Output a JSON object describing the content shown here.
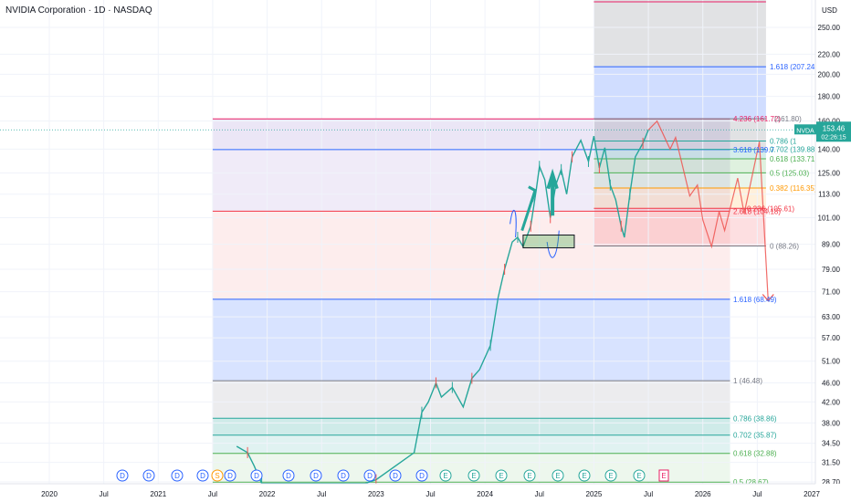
{
  "header": {
    "title": "NVIDIA Corporation · 1D · NASDAQ"
  },
  "chart_data": {
    "type": "line",
    "currency": "USD",
    "symbol": "NVDA",
    "last_price": "153.46",
    "countdown": "02:26:15",
    "x_ticks": [
      "2020",
      "Jul",
      "2021",
      "Jul",
      "2022",
      "Jul",
      "2023",
      "Jul",
      "2024",
      "Jul",
      "2025",
      "Jul",
      "2026",
      "Jul",
      "2027"
    ],
    "y_ticks": [
      "250.00",
      "220.00",
      "200.00",
      "180.00",
      "160.00",
      "140.00",
      "125.00",
      "113.00",
      "101.00",
      "89.00",
      "79.00",
      "71.00",
      "63.00",
      "57.00",
      "51.00",
      "46.00",
      "42.00",
      "38.00",
      "34.50",
      "31.50",
      "28.70"
    ],
    "fib_long": [
      {
        "level": "1",
        "value": "46.48",
        "label": "1 (46.48)",
        "color": "#787b86"
      },
      {
        "level": "0.786",
        "value": "38.86",
        "label": "0.786 (38.86)",
        "color": "#26a69a"
      },
      {
        "level": "0.702",
        "value": "35.87",
        "label": "0.702 (35.87)",
        "color": "#26a69a"
      },
      {
        "level": "0.618",
        "value": "32.88",
        "label": "0.618 (32.88)",
        "color": "#4caf50"
      },
      {
        "level": "0.5",
        "value": "28.67",
        "label": "0.5 (28.67)",
        "color": "#4caf50"
      },
      {
        "level": "1.618",
        "value": "68.49",
        "label": "1.618 (68.49)",
        "color": "#2962ff"
      },
      {
        "level": "2.618",
        "value": "104.18",
        "label": "2.618 (104.18)",
        "color": "#f23645"
      },
      {
        "level": "3.618",
        "value": "139.7",
        "label": "3.618 (139.7",
        "color": "#2962ff"
      },
      {
        "level": "4.236",
        "value": "161.72",
        "label": "4.236 (161.72)",
        "color": "#e91e63"
      }
    ],
    "fib_right": [
      {
        "level": "",
        "value": "161.80",
        "label": "(161.80)",
        "color": "#787b86"
      },
      {
        "level": "0.786",
        "value": "",
        "label": "0.786 (1",
        "color": "#26a69a"
      },
      {
        "level": "0.702",
        "value": "139.88",
        "label": "0.702 (139.88)",
        "color": "#26a69a"
      },
      {
        "level": "0.618",
        "value": "133.71",
        "label": "0.618 (133.71)",
        "color": "#4caf50"
      },
      {
        "level": "0.5",
        "value": "125.03",
        "label": "0.5 (125.03)",
        "color": "#4caf50"
      },
      {
        "level": "0.382",
        "value": "116.35",
        "label": "0.382 (116.35)",
        "color": "#ff9800"
      },
      {
        "level": "0.236",
        "value": "105.61",
        "label": "0.236 (105.61)",
        "color": "#f23645"
      },
      {
        "level": "0",
        "value": "88.26",
        "label": "0 (88.26)",
        "color": "#787b86"
      },
      {
        "level": "1.618",
        "value": "207.24",
        "label": "1.618 (207.24)",
        "color": "#2962ff"
      }
    ],
    "events": [
      "D",
      "D",
      "D",
      "D",
      "S",
      "D",
      "D",
      "D",
      "D",
      "D",
      "D",
      "D",
      "D",
      "E",
      "E",
      "E",
      "E",
      "E",
      "E",
      "E",
      "E",
      "E"
    ]
  }
}
